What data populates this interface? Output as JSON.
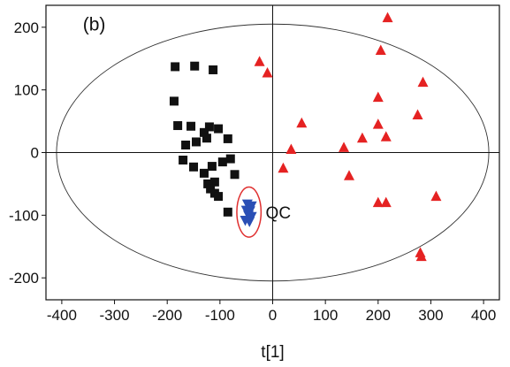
{
  "chart_data": {
    "type": "scatter",
    "panel_label": "(b)",
    "xlabel": "t[1]",
    "ylabel": "",
    "xlim": [
      -430,
      430
    ],
    "ylim": [
      -235,
      235
    ],
    "x_ticks": [
      -400,
      -300,
      -200,
      -100,
      0,
      100,
      200,
      300,
      400
    ],
    "y_ticks": [
      200,
      100,
      0,
      -100,
      -200
    ],
    "grid": false,
    "ellipse": {
      "cx": 0,
      "cy": 0,
      "rx": 410,
      "ry": 205
    },
    "annotation": {
      "text": "QC",
      "x": -15,
      "y": -95
    },
    "qc_circle": {
      "cx": -45,
      "cy": -95,
      "rx": 23,
      "ry": 40,
      "color": "#e03030"
    },
    "series": [
      {
        "marker": "square",
        "color": "#111111",
        "points": [
          [
            -185,
            137
          ],
          [
            -148,
            138
          ],
          [
            -113,
            132
          ],
          [
            -187,
            82
          ],
          [
            -180,
            43
          ],
          [
            -155,
            42
          ],
          [
            -120,
            41
          ],
          [
            -103,
            38
          ],
          [
            -130,
            32
          ],
          [
            -85,
            22
          ],
          [
            -165,
            12
          ],
          [
            -125,
            23
          ],
          [
            -145,
            17
          ],
          [
            -170,
            -12
          ],
          [
            -150,
            -23
          ],
          [
            -130,
            -33
          ],
          [
            -115,
            -22
          ],
          [
            -80,
            -10
          ],
          [
            -95,
            -15
          ],
          [
            -110,
            -47
          ],
          [
            -123,
            -50
          ],
          [
            -118,
            -58
          ],
          [
            -110,
            -65
          ],
          [
            -103,
            -70
          ],
          [
            -85,
            -95
          ],
          [
            -72,
            -35
          ]
        ]
      },
      {
        "marker": "triangle",
        "color": "#e52222",
        "points": [
          [
            -25,
            145
          ],
          [
            -10,
            127
          ],
          [
            218,
            215
          ],
          [
            205,
            163
          ],
          [
            200,
            88
          ],
          [
            285,
            112
          ],
          [
            55,
            47
          ],
          [
            200,
            45
          ],
          [
            275,
            60
          ],
          [
            170,
            23
          ],
          [
            215,
            25
          ],
          [
            35,
            5
          ],
          [
            135,
            8
          ],
          [
            20,
            -25
          ],
          [
            145,
            -37
          ],
          [
            310,
            -70
          ],
          [
            200,
            -80
          ],
          [
            215,
            -80
          ],
          [
            280,
            -160
          ],
          [
            282,
            -166
          ]
        ]
      },
      {
        "marker": "triangle-down",
        "color": "#2a4fb5",
        "points": [
          [
            -48,
            -82
          ],
          [
            -40,
            -85
          ],
          [
            -50,
            -92
          ],
          [
            -43,
            -93
          ],
          [
            -46,
            -100
          ],
          [
            -40,
            -102
          ],
          [
            -52,
            -108
          ],
          [
            -44,
            -110
          ]
        ]
      }
    ]
  }
}
